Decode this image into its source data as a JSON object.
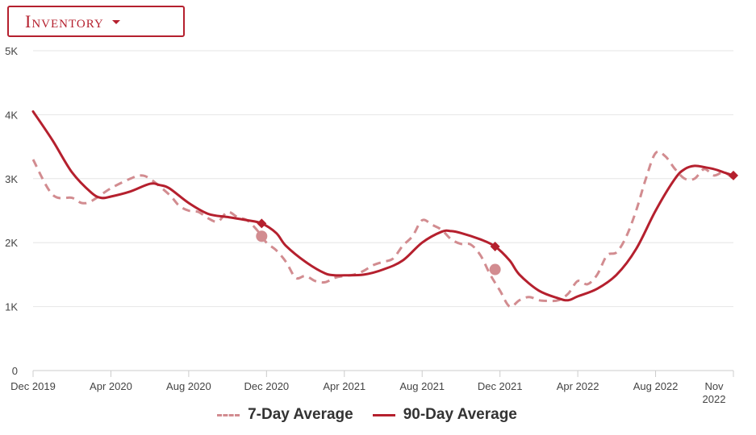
{
  "header": {
    "dropdown_label": "Inventory"
  },
  "colors": {
    "series_7day": "#d28c90",
    "series_90day": "#b5202e",
    "grid": "#e6e6e6",
    "axis": "#cccccc"
  },
  "chart_data": {
    "type": "line",
    "title": "",
    "xlabel": "",
    "ylabel": "",
    "x_axis": {
      "min": 0,
      "max": 35,
      "ticks": [
        {
          "x": 0,
          "label": "Dec 2019"
        },
        {
          "x": 4,
          "label": "Apr 2020"
        },
        {
          "x": 8,
          "label": "Aug 2020"
        },
        {
          "x": 12,
          "label": "Dec 2020"
        },
        {
          "x": 16,
          "label": "Apr 2021"
        },
        {
          "x": 20,
          "label": "Aug 2021"
        },
        {
          "x": 24,
          "label": "Dec 2021"
        },
        {
          "x": 28,
          "label": "Apr 2022"
        },
        {
          "x": 32,
          "label": "Aug 2022"
        },
        {
          "x": 35,
          "label": "Nov",
          "label2": "2022"
        }
      ]
    },
    "y_axis": {
      "min": 0,
      "max": 5000,
      "ticks": [
        {
          "v": 0,
          "label": "0"
        },
        {
          "v": 1000,
          "label": "1K"
        },
        {
          "v": 2000,
          "label": "2K"
        },
        {
          "v": 3000,
          "label": "3K"
        },
        {
          "v": 4000,
          "label": "4K"
        },
        {
          "v": 5000,
          "label": "5K"
        }
      ]
    },
    "grid": true,
    "legend_position": "bottom",
    "series": [
      {
        "name": "7-Day Average",
        "style": "dashed",
        "points": [
          [
            0,
            3300
          ],
          [
            1,
            2750
          ],
          [
            2,
            2700
          ],
          [
            2.5,
            2620
          ],
          [
            3,
            2650
          ],
          [
            4,
            2850
          ],
          [
            5,
            3000
          ],
          [
            5.5,
            3050
          ],
          [
            6,
            3000
          ],
          [
            7,
            2750
          ],
          [
            7.5,
            2580
          ],
          [
            8,
            2500
          ],
          [
            8.5,
            2480
          ],
          [
            9,
            2380
          ],
          [
            9.5,
            2330
          ],
          [
            10,
            2480
          ],
          [
            10.5,
            2400
          ],
          [
            11,
            2350
          ],
          [
            11.5,
            2200
          ],
          [
            12,
            2000
          ],
          [
            12.5,
            1880
          ],
          [
            13,
            1700
          ],
          [
            13.5,
            1450
          ],
          [
            14,
            1480
          ],
          [
            14.5,
            1400
          ],
          [
            15,
            1380
          ],
          [
            15.5,
            1450
          ],
          [
            16,
            1480
          ],
          [
            16.5,
            1500
          ],
          [
            17,
            1560
          ],
          [
            17.5,
            1650
          ],
          [
            18,
            1700
          ],
          [
            18.5,
            1750
          ],
          [
            19,
            1950
          ],
          [
            19.5,
            2100
          ],
          [
            20,
            2350
          ],
          [
            20.5,
            2280
          ],
          [
            21,
            2200
          ],
          [
            21.5,
            2050
          ],
          [
            22,
            1980
          ],
          [
            22.5,
            1970
          ],
          [
            23,
            1800
          ],
          [
            23.5,
            1500
          ],
          [
            24,
            1250
          ],
          [
            24.5,
            1000
          ],
          [
            25,
            1100
          ],
          [
            25.5,
            1150
          ],
          [
            26,
            1100
          ],
          [
            26.5,
            1090
          ],
          [
            27,
            1100
          ],
          [
            27.5,
            1200
          ],
          [
            28,
            1400
          ],
          [
            28.5,
            1350
          ],
          [
            29,
            1500
          ],
          [
            29.5,
            1800
          ],
          [
            30,
            1850
          ],
          [
            30.5,
            2100
          ],
          [
            31,
            2500
          ],
          [
            31.5,
            3000
          ],
          [
            32,
            3400
          ],
          [
            32.5,
            3350
          ],
          [
            33,
            3150
          ],
          [
            33.5,
            3000
          ],
          [
            34,
            3000
          ],
          [
            34.5,
            3150
          ],
          [
            35,
            3050
          ],
          [
            35.5,
            3100
          ],
          [
            36,
            3000
          ]
        ],
        "markers": [
          {
            "x": 11.75,
            "y": 2100,
            "shape": "circle"
          },
          {
            "x": 23.75,
            "y": 1580,
            "shape": "circle"
          }
        ]
      },
      {
        "name": "90-Day Average",
        "style": "solid",
        "points": [
          [
            0,
            4050
          ],
          [
            1,
            3600
          ],
          [
            2,
            3100
          ],
          [
            3,
            2780
          ],
          [
            3.5,
            2700
          ],
          [
            4,
            2720
          ],
          [
            5,
            2800
          ],
          [
            6,
            2920
          ],
          [
            6.5,
            2900
          ],
          [
            7,
            2850
          ],
          [
            8,
            2620
          ],
          [
            9,
            2450
          ],
          [
            10,
            2400
          ],
          [
            11,
            2350
          ],
          [
            11.75,
            2300
          ],
          [
            12.5,
            2150
          ],
          [
            13,
            1950
          ],
          [
            14,
            1700
          ],
          [
            15,
            1520
          ],
          [
            15.5,
            1490
          ],
          [
            16,
            1490
          ],
          [
            17,
            1500
          ],
          [
            18,
            1580
          ],
          [
            19,
            1720
          ],
          [
            20,
            2000
          ],
          [
            21,
            2170
          ],
          [
            21.5,
            2180
          ],
          [
            22,
            2150
          ],
          [
            23,
            2050
          ],
          [
            23.75,
            1940
          ],
          [
            24.5,
            1720
          ],
          [
            25,
            1500
          ],
          [
            26,
            1250
          ],
          [
            27,
            1130
          ],
          [
            27.5,
            1100
          ],
          [
            28,
            1160
          ],
          [
            29,
            1280
          ],
          [
            30,
            1500
          ],
          [
            31,
            1900
          ],
          [
            32,
            2500
          ],
          [
            33,
            3000
          ],
          [
            33.5,
            3150
          ],
          [
            34,
            3200
          ],
          [
            34.5,
            3180
          ],
          [
            35,
            3150
          ],
          [
            35.5,
            3100
          ],
          [
            36,
            3050
          ]
        ],
        "markers": [
          {
            "x": 11.75,
            "y": 2300,
            "shape": "diamond"
          },
          {
            "x": 23.75,
            "y": 1940,
            "shape": "diamond"
          },
          {
            "x": 36,
            "y": 3050,
            "shape": "diamond"
          }
        ]
      }
    ]
  }
}
